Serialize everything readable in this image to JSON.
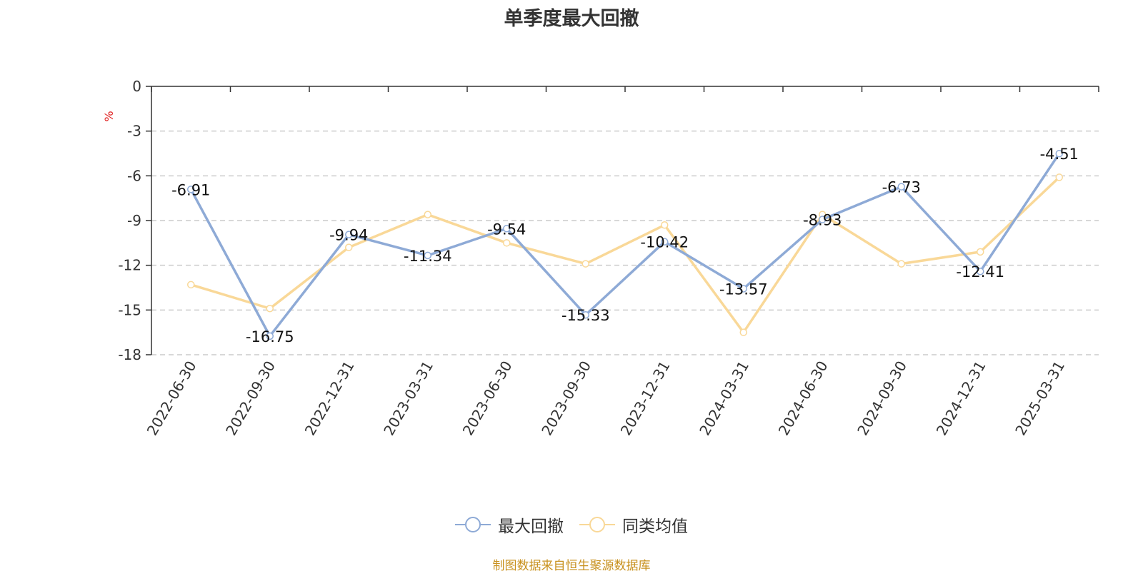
{
  "title": "单季度最大回撤",
  "source_note": "制图数据来自恒生聚源数据库",
  "colors": {
    "series_main": "#8eaad6",
    "series_peer": "#f9d898",
    "axis": "#333333",
    "grid": "#cccccc",
    "unit": "#e02020",
    "source": "#c8911e"
  },
  "chart_data": {
    "type": "line",
    "title": "单季度最大回撤",
    "ylabel": "%",
    "xlabel": "",
    "ylim": [
      -18,
      0
    ],
    "yticks": [
      0,
      -3,
      -6,
      -9,
      -12,
      -15,
      -18
    ],
    "grid": "horizontal-dashed",
    "legend_position": "bottom-center",
    "categories": [
      "2022-06-30",
      "2022-09-30",
      "2022-12-31",
      "2023-03-31",
      "2023-06-30",
      "2023-09-30",
      "2023-12-31",
      "2024-03-31",
      "2024-06-30",
      "2024-09-30",
      "2024-12-31",
      "2025-03-31"
    ],
    "series": [
      {
        "name": "最大回撤",
        "color": "#8eaad6",
        "values": [
          -6.91,
          -16.75,
          -9.94,
          -11.34,
          -9.54,
          -15.33,
          -10.42,
          -13.57,
          -8.93,
          -6.73,
          -12.41,
          -4.51
        ],
        "labels": [
          "-6.91",
          "-16.75",
          "-9.94",
          "-11.34",
          "-9.54",
          "-15.33",
          "-10.42",
          "-13.57",
          "-8.93",
          "-6.73",
          "-12.41",
          "-4.51"
        ]
      },
      {
        "name": "同类均值",
        "color": "#f9d898",
        "values": [
          -13.3,
          -14.9,
          -10.8,
          -8.6,
          -10.5,
          -11.9,
          -9.3,
          -16.5,
          -8.6,
          -11.9,
          -11.1,
          -6.1
        ]
      }
    ]
  }
}
